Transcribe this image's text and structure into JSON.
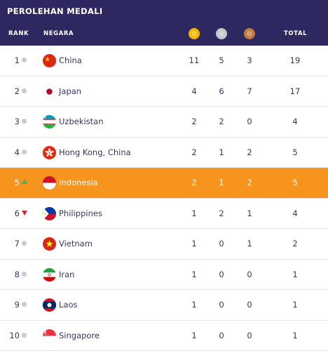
{
  "title": "PEROLEHAN MEDALI",
  "columns": {
    "rank": "RANK",
    "country": "NEGARA",
    "gold_icon": "gold-medal-icon",
    "silver_icon": "silver-medal-icon",
    "bronze_icon": "bronze-medal-icon",
    "total": "TOTAL"
  },
  "colors": {
    "header_bg": "#2e2860",
    "highlight": "#f7941d",
    "gold": "#f2b705",
    "silver": "#c5c6cc",
    "bronze": "#c27b3e"
  },
  "rows": [
    {
      "rank": "1",
      "trend": "same",
      "flag": "china-flag-icon",
      "country": "China",
      "gold": "11",
      "silver": "5",
      "bronze": "3",
      "total": "19"
    },
    {
      "rank": "2",
      "trend": "same",
      "flag": "japan-flag-icon",
      "country": "Japan",
      "gold": "4",
      "silver": "6",
      "bronze": "7",
      "total": "17"
    },
    {
      "rank": "3",
      "trend": "same",
      "flag": "uzbekistan-flag-icon",
      "country": "Uzbekistan",
      "gold": "2",
      "silver": "2",
      "bronze": "0",
      "total": "4"
    },
    {
      "rank": "4",
      "trend": "same",
      "flag": "hong-kong-flag-icon",
      "country": "Hong Kong, China",
      "gold": "2",
      "silver": "1",
      "bronze": "2",
      "total": "5"
    },
    {
      "rank": "5",
      "trend": "up",
      "flag": "indonesia-flag-icon",
      "country": "Indonesia",
      "gold": "2",
      "silver": "1",
      "bronze": "2",
      "total": "5",
      "highlight": true
    },
    {
      "rank": "6",
      "trend": "down",
      "flag": "philippines-flag-icon",
      "country": "Philippines",
      "gold": "1",
      "silver": "2",
      "bronze": "1",
      "total": "4"
    },
    {
      "rank": "7",
      "trend": "same",
      "flag": "vietnam-flag-icon",
      "country": "Vietnam",
      "gold": "1",
      "silver": "0",
      "bronze": "1",
      "total": "2"
    },
    {
      "rank": "8",
      "trend": "same",
      "flag": "iran-flag-icon",
      "country": "Iran",
      "gold": "1",
      "silver": "0",
      "bronze": "0",
      "total": "1"
    },
    {
      "rank": "9",
      "trend": "same",
      "flag": "laos-flag-icon",
      "country": "Laos",
      "gold": "1",
      "silver": "0",
      "bronze": "0",
      "total": "1"
    },
    {
      "rank": "10",
      "trend": "same",
      "flag": "singapore-flag-icon",
      "country": "Singapore",
      "gold": "1",
      "silver": "0",
      "bronze": "0",
      "total": "1"
    }
  ]
}
